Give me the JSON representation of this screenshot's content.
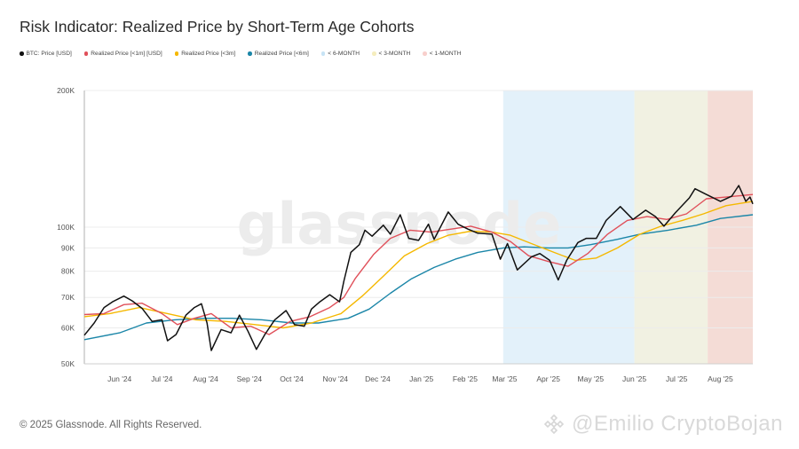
{
  "chart_data": {
    "type": "line",
    "title": "Risk Indicator: Realized Price by Short-Term Age Cohorts",
    "y_scale": "log",
    "ylim": [
      50000,
      200000
    ],
    "y_ticks": [
      "200K",
      "100K",
      "90K",
      "80K",
      "70K",
      "60K",
      "50K"
    ],
    "y_tick_values": [
      200000,
      100000,
      90000,
      80000,
      70000,
      60000,
      50000
    ],
    "x_range": [
      "2024-05-07",
      "2025-08-24"
    ],
    "x_ticks": [
      "Jun '24",
      "Jul '24",
      "Aug '24",
      "Sep '24",
      "Oct '24",
      "Nov '24",
      "Dec '24",
      "Jan '25",
      "Feb '25",
      "Mar '25",
      "Apr '25",
      "May '25",
      "Jun '25",
      "Jul '25",
      "Aug '25"
    ],
    "x_tick_dates": [
      "2024-06-01",
      "2024-07-01",
      "2024-08-01",
      "2024-09-01",
      "2024-10-01",
      "2024-11-01",
      "2024-12-01",
      "2025-01-01",
      "2025-02-01",
      "2025-03-01",
      "2025-04-01",
      "2025-05-01",
      "2025-06-01",
      "2025-07-01",
      "2025-08-01"
    ],
    "grid": true,
    "watermark": "glassnode",
    "legend": {
      "placement": "top-left",
      "entries": [
        {
          "label": "BTC: Price [USD]",
          "color": "#111111"
        },
        {
          "label": "Realized Price [<1m] [USD]",
          "color": "#e0505a"
        },
        {
          "label": "Realized Price [<3m]",
          "color": "#f5b800"
        },
        {
          "label": "Realized Price [<6m]",
          "color": "#1b86a8"
        },
        {
          "label": "< 6-MONTH",
          "color": "#c7e3f5"
        },
        {
          "label": "< 3-MONTH",
          "color": "#f5edbd"
        },
        {
          "label": "< 1-MONTH",
          "color": "#f8cfcc"
        }
      ]
    },
    "shaded_regions": [
      {
        "label": "< 6-MONTH",
        "start": "2025-02-28",
        "end": "2025-06-01",
        "color": "#deeef9"
      },
      {
        "label": "< 3-MONTH",
        "start": "2025-06-01",
        "end": "2025-07-23",
        "color": "#eeeedd"
      },
      {
        "label": "< 1-MONTH",
        "start": "2025-07-23",
        "end": "2025-08-24",
        "color": "#f2d6cf"
      }
    ],
    "series": [
      {
        "name": "BTC: Price [USD]",
        "color": "#111111",
        "points": [
          [
            "2024-05-07",
            57800
          ],
          [
            "2024-05-14",
            61500
          ],
          [
            "2024-05-21",
            66500
          ],
          [
            "2024-05-27",
            68500
          ],
          [
            "2024-06-04",
            70500
          ],
          [
            "2024-06-10",
            68800
          ],
          [
            "2024-06-17",
            66200
          ],
          [
            "2024-06-24",
            62000
          ],
          [
            "2024-07-01",
            62500
          ],
          [
            "2024-07-05",
            56200
          ],
          [
            "2024-07-11",
            58000
          ],
          [
            "2024-07-18",
            64000
          ],
          [
            "2024-07-24",
            66500
          ],
          [
            "2024-07-29",
            67800
          ],
          [
            "2024-08-02",
            61500
          ],
          [
            "2024-08-05",
            53500
          ],
          [
            "2024-08-12",
            59500
          ],
          [
            "2024-08-19",
            58500
          ],
          [
            "2024-08-25",
            64000
          ],
          [
            "2024-08-31",
            59000
          ],
          [
            "2024-09-06",
            53800
          ],
          [
            "2024-09-12",
            58000
          ],
          [
            "2024-09-19",
            62500
          ],
          [
            "2024-09-27",
            65500
          ],
          [
            "2024-10-03",
            61000
          ],
          [
            "2024-10-10",
            60500
          ],
          [
            "2024-10-15",
            66000
          ],
          [
            "2024-10-21",
            68500
          ],
          [
            "2024-10-28",
            71000
          ],
          [
            "2024-11-04",
            68500
          ],
          [
            "2024-11-07",
            76000
          ],
          [
            "2024-11-12",
            88000
          ],
          [
            "2024-11-18",
            91500
          ],
          [
            "2024-11-22",
            98500
          ],
          [
            "2024-11-27",
            95500
          ],
          [
            "2024-12-05",
            101000
          ],
          [
            "2024-12-10",
            96500
          ],
          [
            "2024-12-17",
            106500
          ],
          [
            "2024-12-23",
            94500
          ],
          [
            "2024-12-30",
            93500
          ],
          [
            "2025-01-06",
            101500
          ],
          [
            "2025-01-10",
            94000
          ],
          [
            "2025-01-20",
            108000
          ],
          [
            "2025-01-27",
            101500
          ],
          [
            "2025-02-03",
            99000
          ],
          [
            "2025-02-10",
            97000
          ],
          [
            "2025-02-20",
            96500
          ],
          [
            "2025-02-26",
            85000
          ],
          [
            "2025-03-03",
            92000
          ],
          [
            "2025-03-10",
            80500
          ],
          [
            "2025-03-20",
            86000
          ],
          [
            "2025-03-26",
            87500
          ],
          [
            "2025-04-02",
            84500
          ],
          [
            "2025-04-08",
            76500
          ],
          [
            "2025-04-14",
            84500
          ],
          [
            "2025-04-22",
            92500
          ],
          [
            "2025-04-28",
            94500
          ],
          [
            "2025-05-05",
            94500
          ],
          [
            "2025-05-12",
            103500
          ],
          [
            "2025-05-22",
            111000
          ],
          [
            "2025-05-31",
            104000
          ],
          [
            "2025-06-09",
            109000
          ],
          [
            "2025-06-16",
            105500
          ],
          [
            "2025-06-22",
            100500
          ],
          [
            "2025-06-30",
            107500
          ],
          [
            "2025-07-10",
            116000
          ],
          [
            "2025-07-14",
            121500
          ],
          [
            "2025-07-21",
            118500
          ],
          [
            "2025-08-01",
            114000
          ],
          [
            "2025-08-09",
            117000
          ],
          [
            "2025-08-14",
            123500
          ],
          [
            "2025-08-19",
            114000
          ],
          [
            "2025-08-22",
            116500
          ],
          [
            "2025-08-24",
            112500
          ]
        ]
      },
      {
        "name": "Realized Price [<1m] [USD]",
        "color": "#e0505a",
        "points": [
          [
            "2024-05-07",
            64200
          ],
          [
            "2024-05-21",
            64500
          ],
          [
            "2024-06-04",
            67500
          ],
          [
            "2024-06-17",
            68000
          ],
          [
            "2024-07-01",
            64500
          ],
          [
            "2024-07-12",
            61000
          ],
          [
            "2024-07-24",
            63000
          ],
          [
            "2024-08-05",
            64500
          ],
          [
            "2024-08-19",
            60000
          ],
          [
            "2024-09-02",
            60500
          ],
          [
            "2024-09-15",
            58000
          ],
          [
            "2024-09-30",
            62000
          ],
          [
            "2024-10-14",
            63500
          ],
          [
            "2024-10-28",
            66500
          ],
          [
            "2024-11-07",
            70000
          ],
          [
            "2024-11-15",
            77000
          ],
          [
            "2024-11-28",
            87000
          ],
          [
            "2024-12-10",
            94500
          ],
          [
            "2024-12-24",
            98500
          ],
          [
            "2025-01-08",
            97500
          ],
          [
            "2025-01-22",
            99000
          ],
          [
            "2025-02-05",
            100500
          ],
          [
            "2025-02-20",
            97500
          ],
          [
            "2025-03-05",
            93000
          ],
          [
            "2025-03-18",
            86500
          ],
          [
            "2025-04-01",
            84000
          ],
          [
            "2025-04-15",
            82000
          ],
          [
            "2025-04-29",
            87500
          ],
          [
            "2025-05-13",
            96500
          ],
          [
            "2025-05-27",
            103500
          ],
          [
            "2025-06-10",
            105500
          ],
          [
            "2025-06-24",
            104000
          ],
          [
            "2025-07-08",
            107000
          ],
          [
            "2025-07-22",
            115500
          ],
          [
            "2025-08-05",
            116500
          ],
          [
            "2025-08-24",
            118000
          ]
        ]
      },
      {
        "name": "Realized Price [<3m]",
        "color": "#f5b800",
        "points": [
          [
            "2024-05-07",
            63500
          ],
          [
            "2024-05-25",
            64500
          ],
          [
            "2024-06-15",
            66500
          ],
          [
            "2024-07-05",
            64500
          ],
          [
            "2024-07-25",
            62500
          ],
          [
            "2024-08-15",
            62000
          ],
          [
            "2024-09-05",
            61000
          ],
          [
            "2024-09-25",
            60000
          ],
          [
            "2024-10-15",
            61500
          ],
          [
            "2024-11-05",
            64500
          ],
          [
            "2024-11-20",
            70500
          ],
          [
            "2024-12-05",
            78000
          ],
          [
            "2024-12-20",
            86500
          ],
          [
            "2025-01-05",
            92000
          ],
          [
            "2025-01-20",
            96000
          ],
          [
            "2025-02-05",
            98000
          ],
          [
            "2025-02-20",
            97500
          ],
          [
            "2025-03-05",
            96000
          ],
          [
            "2025-03-20",
            92000
          ],
          [
            "2025-04-05",
            88000
          ],
          [
            "2025-04-20",
            84500
          ],
          [
            "2025-05-05",
            85500
          ],
          [
            "2025-05-20",
            90000
          ],
          [
            "2025-06-05",
            96500
          ],
          [
            "2025-06-20",
            100500
          ],
          [
            "2025-07-05",
            103500
          ],
          [
            "2025-07-20",
            107000
          ],
          [
            "2025-08-05",
            111500
          ],
          [
            "2025-08-24",
            114000
          ]
        ]
      },
      {
        "name": "Realized Price [<6m]",
        "color": "#1b86a8",
        "points": [
          [
            "2024-05-07",
            56500
          ],
          [
            "2024-06-01",
            58500
          ],
          [
            "2024-06-20",
            61500
          ],
          [
            "2024-07-10",
            62500
          ],
          [
            "2024-08-01",
            63000
          ],
          [
            "2024-08-20",
            63000
          ],
          [
            "2024-09-10",
            62500
          ],
          [
            "2024-10-01",
            61500
          ],
          [
            "2024-10-20",
            61500
          ],
          [
            "2024-11-10",
            63000
          ],
          [
            "2024-11-25",
            66000
          ],
          [
            "2024-12-10",
            71500
          ],
          [
            "2024-12-25",
            77000
          ],
          [
            "2025-01-10",
            81500
          ],
          [
            "2025-01-25",
            85000
          ],
          [
            "2025-02-10",
            88000
          ],
          [
            "2025-02-28",
            90000
          ],
          [
            "2025-03-15",
            90500
          ],
          [
            "2025-04-01",
            90000
          ],
          [
            "2025-04-15",
            90000
          ],
          [
            "2025-05-01",
            91500
          ],
          [
            "2025-05-20",
            94000
          ],
          [
            "2025-06-05",
            96500
          ],
          [
            "2025-06-25",
            98500
          ],
          [
            "2025-07-15",
            101000
          ],
          [
            "2025-08-01",
            104500
          ],
          [
            "2025-08-24",
            106500
          ]
        ]
      }
    ]
  },
  "footer": {
    "copyright": "© 2025 Glassnode. All Rights Reserved.",
    "credit": "@Emilio CryptoBojan"
  },
  "colors": {
    "price": "#111111",
    "rp_1m": "#e0505a",
    "rp_3m": "#f5b800",
    "rp_6m": "#1b86a8"
  }
}
